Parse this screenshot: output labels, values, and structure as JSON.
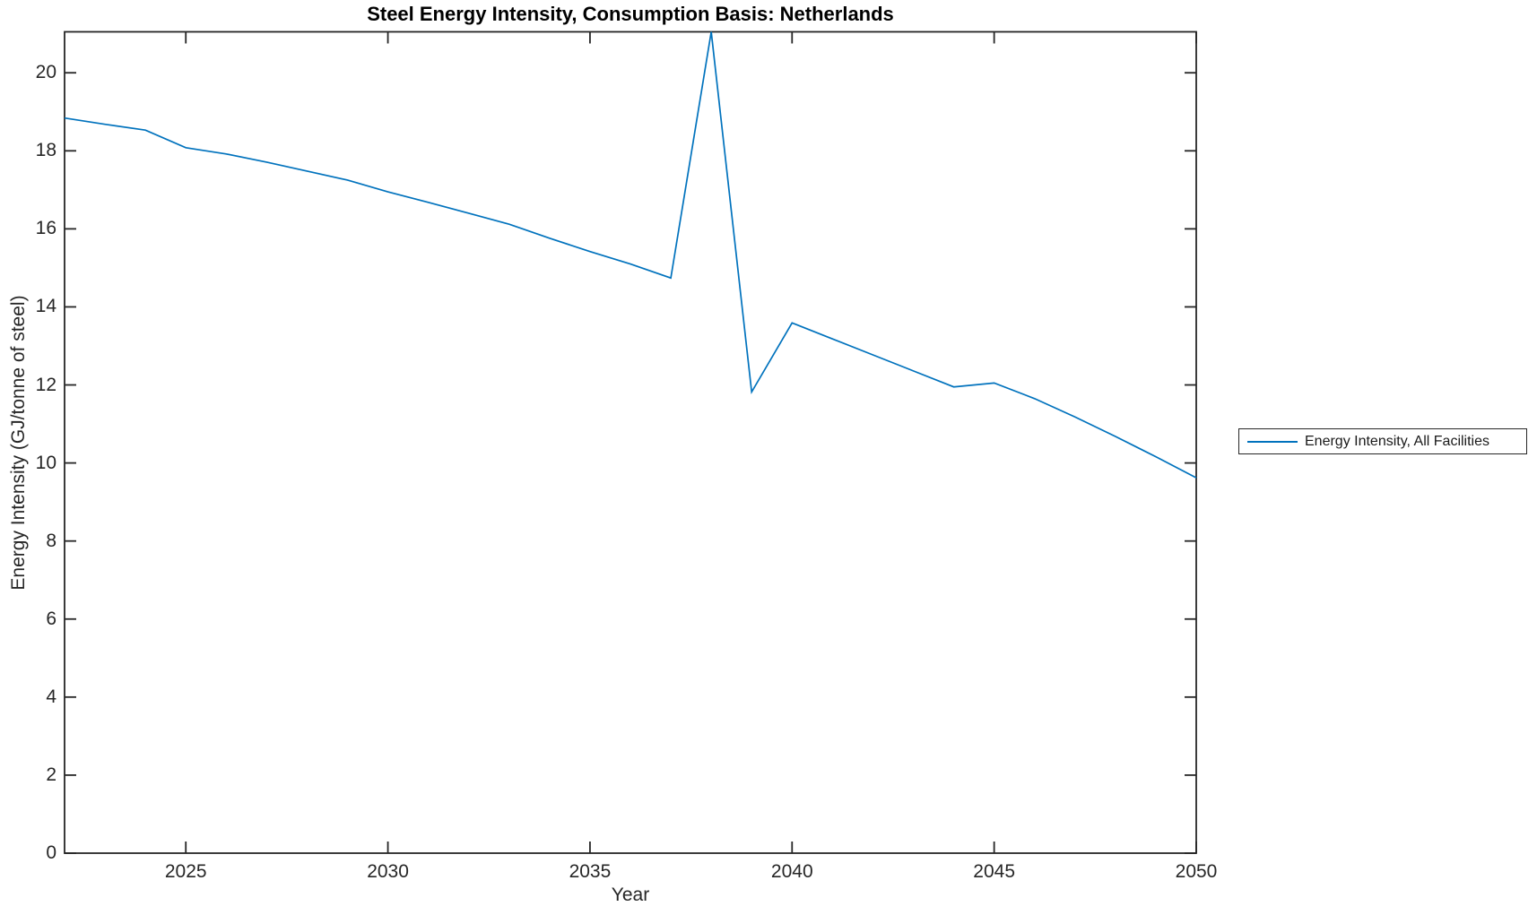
{
  "figure": {
    "title": "Steel Energy Intensity, Consumption Basis: Netherlands",
    "xlabel": "Year",
    "ylabel": "Energy Intensity (GJ/tonne of steel)",
    "legend": {
      "entries": [
        {
          "label": "Energy Intensity, All Facilities",
          "color": "#0072BD"
        }
      ],
      "position": "right-outside"
    }
  },
  "colors": {
    "series_blue": "#0072BD",
    "axis": "#262626",
    "background": "#ffffff"
  },
  "chart_data": {
    "type": "line",
    "title": "Steel Energy Intensity, Consumption Basis: Netherlands",
    "xlabel": "Year",
    "ylabel": "Energy Intensity (GJ/tonne of steel)",
    "x": [
      2022,
      2023,
      2024,
      2025,
      2026,
      2027,
      2028,
      2029,
      2030,
      2031,
      2032,
      2033,
      2034,
      2035,
      2036,
      2037,
      2038,
      2039,
      2040,
      2041,
      2042,
      2043,
      2044,
      2045,
      2046,
      2047,
      2048,
      2049,
      2050
    ],
    "series": [
      {
        "name": "Energy Intensity, All Facilities",
        "color": "#0072BD",
        "values": [
          18.84,
          18.68,
          18.53,
          18.08,
          17.92,
          17.71,
          17.48,
          17.25,
          16.95,
          16.68,
          16.4,
          16.12,
          15.76,
          15.42,
          15.1,
          14.74,
          21.05,
          11.82,
          13.59,
          13.18,
          12.77,
          12.36,
          11.95,
          12.05,
          11.65,
          11.18,
          10.68,
          10.16,
          9.62
        ]
      }
    ],
    "xlim": [
      2022,
      2050
    ],
    "ylim": [
      0,
      21.05
    ],
    "xticks": [
      2025,
      2030,
      2035,
      2040,
      2045,
      2050
    ],
    "yticks": [
      0,
      2,
      4,
      6,
      8,
      10,
      12,
      14,
      16,
      18,
      20
    ],
    "grid": false,
    "legend_position": "right-outside"
  }
}
